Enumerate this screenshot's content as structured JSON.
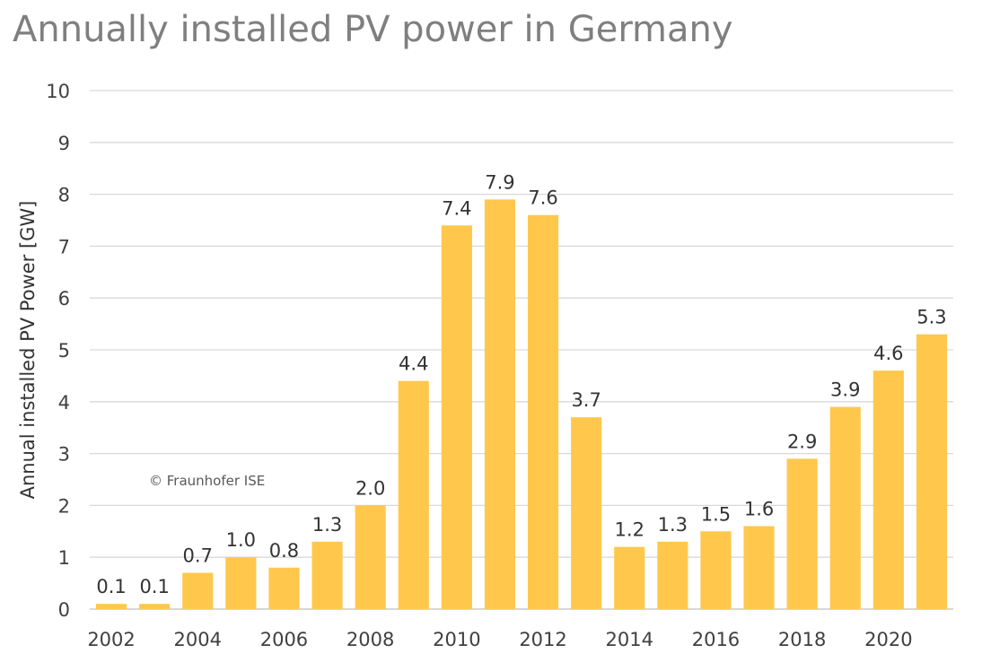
{
  "chart_data": {
    "type": "bar",
    "title": "Annually installed PV power in Germany",
    "ylabel": "Annual installed PV Power [GW]",
    "xlabel": "",
    "credit": "© Fraunhofer ISE",
    "ylim": [
      0,
      10
    ],
    "yticks": [
      0,
      1,
      2,
      3,
      4,
      5,
      6,
      7,
      8,
      9,
      10
    ],
    "grid": true,
    "bar_color": "#FFC84D",
    "categories": [
      "2002",
      "2003",
      "2004",
      "2005",
      "2006",
      "2007",
      "2008",
      "2009",
      "2010",
      "2011",
      "2012",
      "2013",
      "2014",
      "2015",
      "2016",
      "2017",
      "2018",
      "2019",
      "2020",
      "2021"
    ],
    "values": [
      0.1,
      0.1,
      0.7,
      1.0,
      0.8,
      1.3,
      2.0,
      4.4,
      7.4,
      7.9,
      7.6,
      3.7,
      1.2,
      1.3,
      1.5,
      1.6,
      2.9,
      3.9,
      4.6,
      5.3
    ],
    "value_labels": [
      "0.1",
      "0.1",
      "0.7",
      "1.0",
      "0.8",
      "1.3",
      "2.0",
      "4.4",
      "7.4",
      "7.9",
      "7.6",
      "3.7",
      "1.2",
      "1.3",
      "1.5",
      "1.6",
      "2.9",
      "3.9",
      "4.6",
      "5.3"
    ],
    "xtick_labels": [
      "2002",
      "2004",
      "2006",
      "2008",
      "2010",
      "2012",
      "2014",
      "2016",
      "2018",
      "2020"
    ]
  }
}
